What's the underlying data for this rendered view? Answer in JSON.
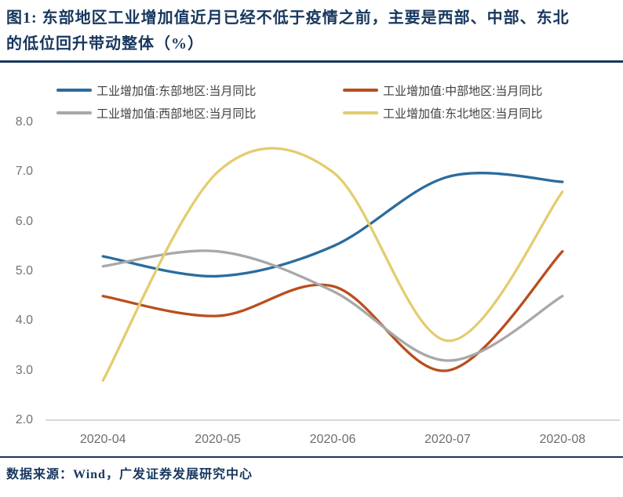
{
  "figure": {
    "title_line1": "图1:  东部地区工业增加值近月已经不低于疫情之前，主要是西部、中部、东北",
    "title_line2": "的低位回升带动整体（%）",
    "source": "数据来源：Wind，广发证券发展研究中心"
  },
  "colors": {
    "accent_navy": "#17375e",
    "axis_line": "#d9d9d9",
    "tick_text": "#737373",
    "legend_text": "#404040"
  },
  "chart_data": {
    "type": "line",
    "smooth": true,
    "grid": false,
    "legend_position": "top",
    "categories": [
      "2020-04",
      "2020-05",
      "2020-06",
      "2020-07",
      "2020-08"
    ],
    "series": [
      {
        "key": "east",
        "name": "工业增加值:东部地区:当月同比",
        "color": "#2a6c9e",
        "values": [
          5.3,
          4.9,
          5.5,
          6.9,
          6.8
        ]
      },
      {
        "key": "central",
        "name": "工业增加值:中部地区:当月同比",
        "color": "#b94e1c",
        "values": [
          4.5,
          4.1,
          4.7,
          3.0,
          5.4
        ]
      },
      {
        "key": "west",
        "name": "工业增加值:西部地区:当月同比",
        "color": "#a8a8a8",
        "values": [
          5.1,
          5.4,
          4.6,
          3.2,
          4.5
        ]
      },
      {
        "key": "northeast",
        "name": "工业增加值:东北地区:当月同比",
        "color": "#e4cc6f",
        "values": [
          2.8,
          7.0,
          7.0,
          3.6,
          6.6
        ]
      }
    ],
    "yticks": [
      "8.0",
      "7.0",
      "6.0",
      "5.0",
      "4.0",
      "3.0",
      "2.0"
    ],
    "ylim": [
      2.0,
      8.0
    ],
    "ylabel": "",
    "xlabel": ""
  }
}
